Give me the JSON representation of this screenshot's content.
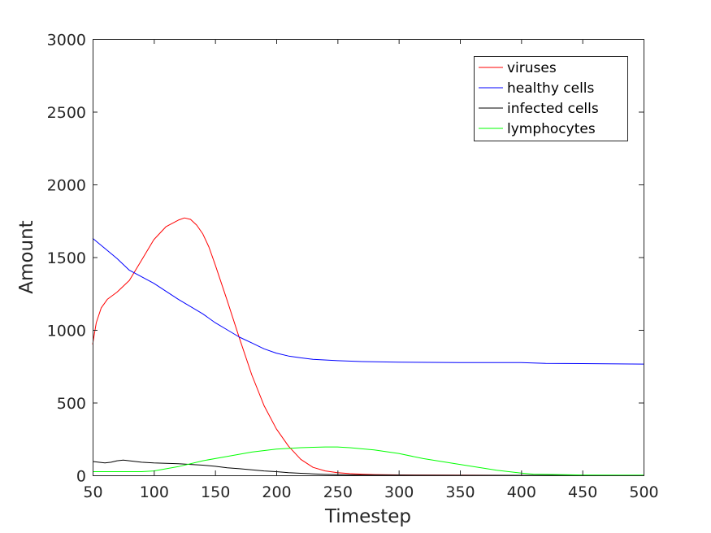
{
  "chart_data": {
    "type": "line",
    "title": "",
    "xlabel": "Timestep",
    "ylabel": "Amount",
    "xlim": [
      50,
      500
    ],
    "ylim": [
      0,
      3000
    ],
    "xticks": [
      50,
      100,
      150,
      200,
      250,
      300,
      350,
      400,
      450,
      500
    ],
    "yticks": [
      0,
      500,
      1000,
      1500,
      2000,
      2500,
      3000
    ],
    "grid": false,
    "legend_position": "top-right",
    "series": [
      {
        "name": "viruses",
        "color": "#ff0000",
        "x": [
          50,
          53,
          57,
          62,
          70,
          80,
          90,
          100,
          110,
          120,
          125,
          130,
          135,
          140,
          145,
          150,
          160,
          170,
          180,
          190,
          200,
          210,
          220,
          230,
          240,
          250,
          260,
          270,
          280,
          300,
          350,
          400,
          450,
          500
        ],
        "y": [
          900,
          1050,
          1150,
          1210,
          1260,
          1340,
          1480,
          1620,
          1710,
          1755,
          1770,
          1760,
          1720,
          1660,
          1570,
          1450,
          1200,
          940,
          690,
          480,
          320,
          200,
          110,
          55,
          30,
          18,
          12,
          8,
          5,
          3,
          1,
          0,
          0,
          0
        ]
      },
      {
        "name": "healthy cells",
        "color": "#0000ff",
        "x": [
          50,
          60,
          70,
          80,
          100,
          120,
          140,
          150,
          160,
          170,
          180,
          190,
          200,
          210,
          220,
          230,
          250,
          270,
          300,
          350,
          400,
          420,
          450,
          500
        ],
        "y": [
          1630,
          1560,
          1490,
          1410,
          1320,
          1210,
          1110,
          1050,
          1000,
          950,
          910,
          870,
          840,
          820,
          808,
          798,
          788,
          782,
          778,
          775,
          775,
          770,
          768,
          765
        ]
      },
      {
        "name": "infected cells",
        "color": "#000000",
        "x": [
          50,
          55,
          60,
          65,
          70,
          75,
          80,
          90,
          100,
          110,
          120,
          130,
          140,
          150,
          160,
          170,
          180,
          190,
          200,
          210,
          220,
          230,
          240,
          250,
          270,
          300,
          350,
          400,
          450,
          500
        ],
        "y": [
          95,
          90,
          85,
          90,
          100,
          105,
          100,
          90,
          85,
          82,
          80,
          75,
          70,
          62,
          52,
          45,
          38,
          30,
          25,
          18,
          14,
          10,
          6,
          4,
          2,
          1,
          0,
          0,
          0,
          0
        ]
      },
      {
        "name": "lymphocytes",
        "color": "#00ff00",
        "x": [
          50,
          60,
          70,
          80,
          90,
          100,
          120,
          140,
          160,
          180,
          200,
          220,
          240,
          250,
          260,
          280,
          300,
          320,
          350,
          380,
          400,
          410,
          450,
          500
        ],
        "y": [
          25,
          25,
          25,
          25,
          25,
          30,
          60,
          100,
          130,
          160,
          180,
          190,
          195,
          195,
          190,
          175,
          150,
          115,
          75,
          35,
          15,
          8,
          2,
          1
        ]
      }
    ]
  }
}
